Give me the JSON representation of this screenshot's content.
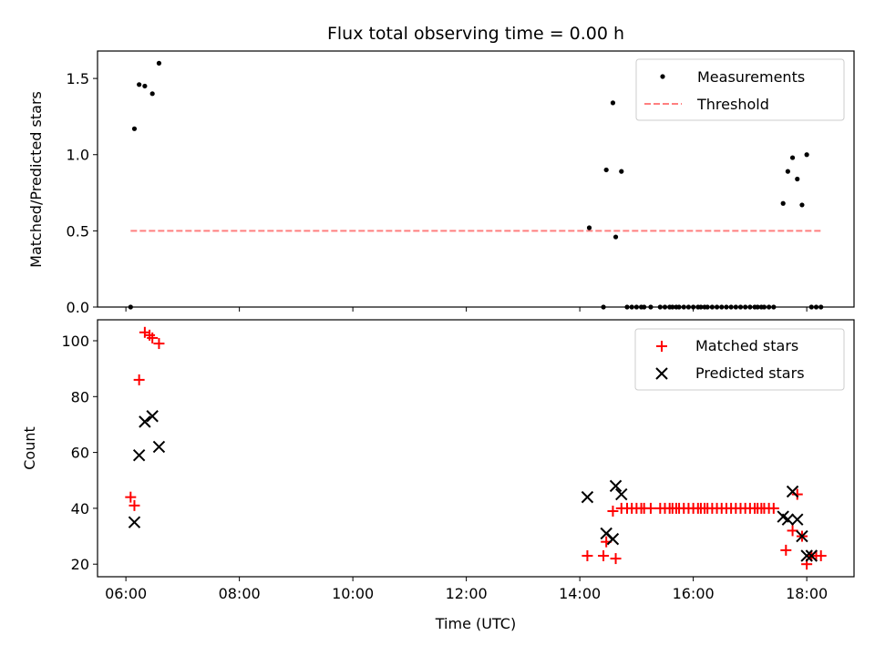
{
  "title": "Flux total observing time = 0.00 h",
  "colors": {
    "measurement": "#000000",
    "threshold": "#ff7f7f",
    "matched": "#ff0000",
    "predicted": "#000000"
  },
  "chart_data": [
    {
      "type": "scatter",
      "ylabel": "Matched/Predicted stars",
      "xlim": [
        "05:30",
        "18:50"
      ],
      "ylim": [
        0,
        1.68
      ],
      "y_ticks": [
        "0.0",
        "0.5",
        "1.0",
        "1.5"
      ],
      "legend_position": "top-right",
      "threshold": {
        "name": "Threshold",
        "value": 0.5,
        "x_range": [
          "06:05",
          "18:15"
        ]
      },
      "series": [
        {
          "name": "Measurements",
          "x": [
            "06:05",
            "06:09",
            "06:14",
            "06:20",
            "06:28",
            "06:35",
            "14:10",
            "14:25",
            "14:28",
            "14:35",
            "14:38",
            "14:44",
            "14:50",
            "14:55",
            "15:00",
            "15:05",
            "15:08",
            "15:15",
            "15:25",
            "15:30",
            "15:35",
            "15:38",
            "15:42",
            "15:45",
            "15:50",
            "15:55",
            "16:00",
            "16:05",
            "16:08",
            "16:12",
            "16:15",
            "16:20",
            "16:25",
            "16:30",
            "16:35",
            "16:40",
            "16:45",
            "16:50",
            "16:55",
            "17:00",
            "17:05",
            "17:08",
            "17:12",
            "17:15",
            "17:20",
            "17:25",
            "17:35",
            "17:40",
            "17:45",
            "17:50",
            "17:55",
            "18:00",
            "18:05",
            "18:10",
            "18:15"
          ],
          "y": [
            0.0,
            1.17,
            1.46,
            1.45,
            1.4,
            1.6,
            0.52,
            0.0,
            0.9,
            1.34,
            0.46,
            0.89,
            0.0,
            0.0,
            0.0,
            0.0,
            0.0,
            0.0,
            0.0,
            0.0,
            0.0,
            0.0,
            0.0,
            0.0,
            0.0,
            0.0,
            0.0,
            0.0,
            0.0,
            0.0,
            0.0,
            0.0,
            0.0,
            0.0,
            0.0,
            0.0,
            0.0,
            0.0,
            0.0,
            0.0,
            0.0,
            0.0,
            0.0,
            0.0,
            0.0,
            0.0,
            0.68,
            0.89,
            0.98,
            0.84,
            0.67,
            1.0,
            0.0,
            0.0,
            0.0
          ]
        }
      ]
    },
    {
      "type": "scatter",
      "xlabel": "Time (UTC)",
      "ylabel": "Count",
      "xlim": [
        "05:30",
        "18:50"
      ],
      "ylim": [
        15.5,
        107.5
      ],
      "x_ticks": [
        "06:00",
        "08:00",
        "10:00",
        "12:00",
        "14:00",
        "16:00",
        "18:00"
      ],
      "y_ticks": [
        "20",
        "40",
        "60",
        "80",
        "100"
      ],
      "legend_position": "top-right",
      "series": [
        {
          "name": "Matched stars",
          "marker": "plus",
          "x": [
            "06:05",
            "06:09",
            "06:14",
            "06:20",
            "06:25",
            "06:28",
            "06:35",
            "14:08",
            "14:25",
            "14:28",
            "14:35",
            "14:38",
            "14:44",
            "14:50",
            "14:55",
            "15:00",
            "15:05",
            "15:08",
            "15:15",
            "15:25",
            "15:30",
            "15:35",
            "15:38",
            "15:42",
            "15:45",
            "15:50",
            "15:55",
            "16:00",
            "16:05",
            "16:08",
            "16:12",
            "16:15",
            "16:20",
            "16:25",
            "16:30",
            "16:35",
            "16:40",
            "16:45",
            "16:50",
            "16:55",
            "17:00",
            "17:05",
            "17:08",
            "17:12",
            "17:15",
            "17:20",
            "17:25",
            "17:38",
            "17:45",
            "17:50",
            "17:55",
            "18:00",
            "18:05",
            "18:10",
            "18:15"
          ],
          "y": [
            44,
            41,
            86,
            103,
            102,
            101,
            99,
            23,
            23,
            28,
            39,
            22,
            40,
            40,
            40,
            40,
            40,
            40,
            40,
            40,
            40,
            40,
            40,
            40,
            40,
            40,
            40,
            40,
            40,
            40,
            40,
            40,
            40,
            40,
            40,
            40,
            40,
            40,
            40,
            40,
            40,
            40,
            40,
            40,
            40,
            40,
            40,
            25,
            32,
            45,
            30,
            20,
            23,
            23,
            23
          ]
        },
        {
          "name": "Predicted stars",
          "marker": "x",
          "x": [
            "06:09",
            "06:14",
            "06:20",
            "06:28",
            "06:35",
            "14:08",
            "14:28",
            "14:35",
            "14:38",
            "14:44",
            "17:35",
            "17:40",
            "17:45",
            "17:50",
            "17:55",
            "18:00",
            "18:05"
          ],
          "y": [
            35,
            59,
            71,
            73,
            62,
            44,
            31,
            29,
            48,
            45,
            37,
            36,
            46,
            36,
            30,
            23,
            23
          ]
        }
      ]
    }
  ]
}
